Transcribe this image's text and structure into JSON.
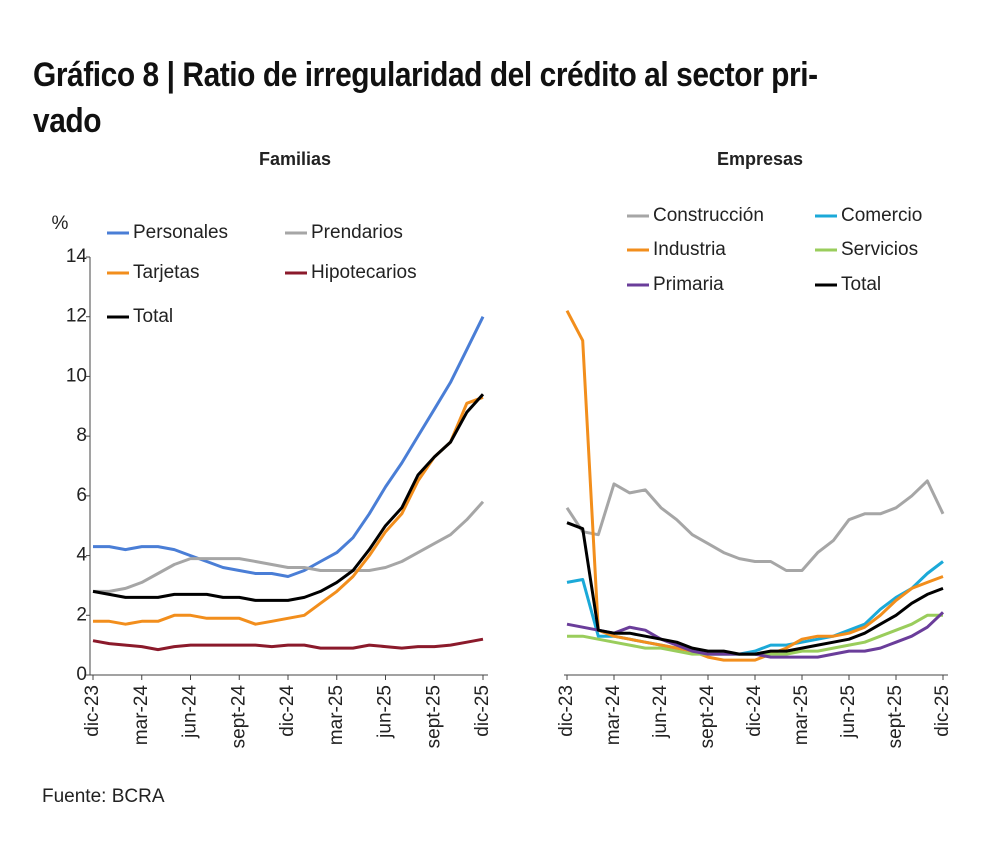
{
  "title": "Gráfico 8 | Ratio de irregularidad del crédito al sector pri-\nvado",
  "source": "Fuente: BCRA",
  "chart_data": [
    {
      "type": "line",
      "title": "Familias",
      "y_unit": "%",
      "categories": [
        "dic-23",
        null,
        null,
        "mar-24",
        null,
        null,
        "jun-24",
        null,
        null,
        "sept-24",
        null,
        null,
        "dic-24",
        null,
        null,
        "mar-25",
        null,
        null,
        "jun-25",
        null,
        null,
        "sept-25",
        null,
        null,
        "dic-25"
      ],
      "ylim": [
        0,
        14
      ],
      "yticks": [
        0,
        2,
        4,
        6,
        8,
        10,
        12,
        14
      ],
      "series": [
        {
          "name": "Personales",
          "color": "#4a7ed6",
          "values": [
            4.3,
            4.3,
            4.2,
            4.3,
            4.3,
            4.2,
            4.0,
            3.8,
            3.6,
            3.5,
            3.4,
            3.4,
            3.3,
            3.5,
            3.8,
            4.1,
            4.6,
            5.4,
            6.3,
            7.1,
            8.0,
            8.9,
            9.8,
            10.9,
            12.0
          ]
        },
        {
          "name": "Prendarios",
          "color": "#a6a6a6",
          "values": [
            2.8,
            2.8,
            2.9,
            3.1,
            3.4,
            3.7,
            3.9,
            3.9,
            3.9,
            3.9,
            3.8,
            3.7,
            3.6,
            3.6,
            3.5,
            3.5,
            3.5,
            3.5,
            3.6,
            3.8,
            4.1,
            4.4,
            4.7,
            5.2,
            5.8
          ]
        },
        {
          "name": "Tarjetas",
          "color": "#f28e1c",
          "values": [
            1.8,
            1.8,
            1.7,
            1.8,
            1.8,
            2.0,
            2.0,
            1.9,
            1.9,
            1.9,
            1.7,
            1.8,
            1.9,
            2.0,
            2.4,
            2.8,
            3.3,
            4.0,
            4.8,
            5.4,
            6.5,
            7.3,
            7.8,
            9.1,
            9.3
          ]
        },
        {
          "name": "Hipotecarios",
          "color": "#8b1a2b",
          "values": [
            1.15,
            1.05,
            1.0,
            0.95,
            0.85,
            0.95,
            1.0,
            1.0,
            1.0,
            1.0,
            1.0,
            0.95,
            1.0,
            1.0,
            0.9,
            0.9,
            0.9,
            1.0,
            0.95,
            0.9,
            0.95,
            0.95,
            1.0,
            1.1,
            1.2
          ]
        },
        {
          "name": "Total",
          "color": "#000000",
          "values": [
            2.8,
            2.7,
            2.6,
            2.6,
            2.6,
            2.7,
            2.7,
            2.7,
            2.6,
            2.6,
            2.5,
            2.5,
            2.5,
            2.6,
            2.8,
            3.1,
            3.5,
            4.2,
            5.0,
            5.6,
            6.7,
            7.3,
            7.8,
            8.8,
            9.4
          ]
        }
      ]
    },
    {
      "type": "line",
      "title": "Empresas",
      "categories": [
        "dic-23",
        null,
        null,
        "mar-24",
        null,
        null,
        "jun-24",
        null,
        null,
        "sept-24",
        null,
        null,
        "dic-24",
        null,
        null,
        "mar-25",
        null,
        null,
        "jun-25",
        null,
        null,
        "sept-25",
        null,
        null,
        "dic-25"
      ],
      "ylim": [
        0,
        14
      ],
      "series": [
        {
          "name": "Construcción",
          "color": "#a6a6a6",
          "values": [
            5.6,
            4.8,
            4.7,
            6.4,
            6.1,
            6.2,
            5.6,
            5.2,
            4.7,
            4.4,
            4.1,
            3.9,
            3.8,
            3.8,
            3.5,
            3.5,
            4.1,
            4.5,
            5.2,
            5.4,
            5.4,
            5.6,
            6.0,
            6.5,
            5.4
          ]
        },
        {
          "name": "Comercio",
          "color": "#1ba9d8",
          "values": [
            3.1,
            3.2,
            1.3,
            1.3,
            1.2,
            1.1,
            1.0,
            0.9,
            0.8,
            0.7,
            0.7,
            0.7,
            0.8,
            1.0,
            1.0,
            1.1,
            1.2,
            1.3,
            1.5,
            1.7,
            2.2,
            2.6,
            2.9,
            3.4,
            3.8
          ]
        },
        {
          "name": "Industria",
          "color": "#f28e1c",
          "values": [
            12.2,
            11.2,
            1.5,
            1.3,
            1.2,
            1.1,
            1.0,
            0.9,
            0.8,
            0.6,
            0.5,
            0.5,
            0.5,
            0.7,
            0.9,
            1.2,
            1.3,
            1.3,
            1.4,
            1.6,
            2.0,
            2.5,
            2.9,
            3.1,
            3.3
          ]
        },
        {
          "name": "Servicios",
          "color": "#9acd5c",
          "values": [
            1.3,
            1.3,
            1.2,
            1.1,
            1.0,
            0.9,
            0.9,
            0.8,
            0.7,
            0.7,
            0.7,
            0.7,
            0.7,
            0.7,
            0.7,
            0.8,
            0.8,
            0.9,
            1.0,
            1.1,
            1.3,
            1.5,
            1.7,
            2.0,
            2.0
          ]
        },
        {
          "name": "Primaria",
          "color": "#6a3d9a",
          "values": [
            1.7,
            1.6,
            1.5,
            1.4,
            1.6,
            1.5,
            1.2,
            1.0,
            0.8,
            0.7,
            0.7,
            0.7,
            0.7,
            0.6,
            0.6,
            0.6,
            0.6,
            0.7,
            0.8,
            0.8,
            0.9,
            1.1,
            1.3,
            1.6,
            2.1
          ]
        },
        {
          "name": "Total",
          "color": "#000000",
          "values": [
            5.1,
            4.9,
            1.5,
            1.4,
            1.4,
            1.3,
            1.2,
            1.1,
            0.9,
            0.8,
            0.8,
            0.7,
            0.7,
            0.8,
            0.8,
            0.9,
            1.0,
            1.1,
            1.2,
            1.4,
            1.7,
            2.0,
            2.4,
            2.7,
            2.9
          ]
        }
      ]
    }
  ]
}
